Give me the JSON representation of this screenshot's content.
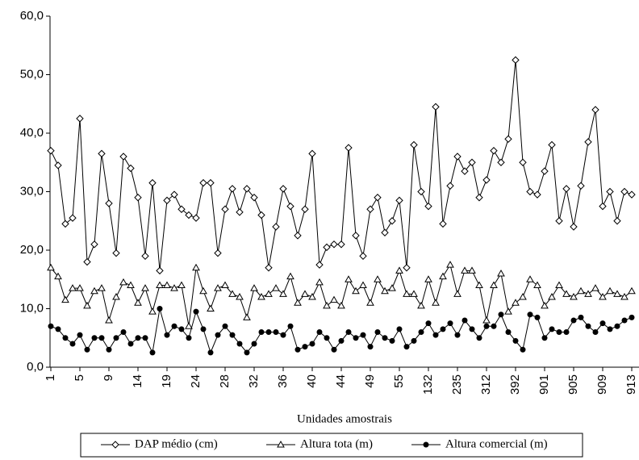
{
  "chart_data": {
    "type": "line",
    "x_label": "Unidades amostrais",
    "categories": [
      "1",
      null,
      null,
      null,
      "5",
      null,
      null,
      null,
      "9",
      null,
      null,
      null,
      "14",
      null,
      null,
      null,
      "19",
      null,
      null,
      null,
      "24",
      null,
      null,
      null,
      "28",
      null,
      null,
      null,
      "32",
      null,
      null,
      null,
      "36",
      null,
      null,
      null,
      "40",
      null,
      null,
      null,
      "44",
      null,
      null,
      null,
      "49",
      null,
      null,
      null,
      "55",
      null,
      null,
      null,
      "132",
      null,
      null,
      null,
      "235",
      null,
      null,
      null,
      "312",
      null,
      null,
      null,
      "392",
      null,
      null,
      null,
      "901",
      null,
      null,
      null,
      "905",
      null,
      null,
      null,
      "909",
      null,
      null,
      null,
      "913"
    ],
    "series": [
      {
        "name": "DAP médio (cm)",
        "color": "#000000",
        "marker": "diamond",
        "values": [
          37,
          34.5,
          24.5,
          25.5,
          42.5,
          18,
          21,
          36.5,
          28,
          19.5,
          36,
          34,
          29,
          19,
          31.5,
          16.5,
          28.5,
          29.5,
          27,
          26,
          25.5,
          31.5,
          31.5,
          19.5,
          27,
          30.5,
          26.5,
          30.5,
          29,
          26,
          17,
          24,
          30.5,
          27.5,
          22.5,
          27,
          36.5,
          17.5,
          20.5,
          21,
          21,
          37.5,
          22.5,
          19,
          27,
          29,
          23,
          25,
          28.5,
          17,
          38,
          30,
          27.5,
          44.5,
          24.5,
          31,
          36,
          33.5,
          35,
          29,
          32,
          37,
          35,
          39,
          52.5,
          35,
          30,
          29.5,
          33.5,
          38,
          25,
          30.5,
          24,
          31,
          38.5,
          44,
          27.5,
          30,
          25,
          30,
          29.5
        ]
      },
      {
        "name": "Altura tota (m)",
        "color": "#000000",
        "marker": "triangle",
        "values": [
          17,
          15.5,
          11.5,
          13.5,
          13.5,
          10.5,
          13,
          13.5,
          8,
          12,
          14.5,
          14,
          11,
          13.5,
          9.5,
          14,
          14,
          13.5,
          14,
          7,
          17,
          13,
          10,
          13.5,
          14,
          12.5,
          12,
          8.5,
          13.5,
          12,
          12.5,
          13.5,
          12.5,
          15.5,
          11,
          12.5,
          12,
          14.5,
          10.5,
          11.5,
          10.5,
          15,
          13,
          14,
          11,
          15,
          13,
          13.5,
          16.5,
          12.5,
          12.5,
          10.5,
          15,
          11,
          15.5,
          17.5,
          12.5,
          16.5,
          16.5,
          14,
          8,
          14,
          16,
          9.5,
          11,
          12,
          15,
          14,
          10.5,
          12,
          14,
          12.5,
          12,
          13,
          12.5,
          13.5,
          12,
          13,
          12.5,
          12,
          13
        ]
      },
      {
        "name": "Altura comercial (m)",
        "color": "#000000",
        "marker": "circle",
        "values": [
          7,
          6.5,
          5,
          4,
          5.5,
          3,
          5,
          5,
          3,
          5,
          6,
          4,
          5,
          5,
          2.5,
          10,
          5.5,
          7,
          6.5,
          5,
          9.5,
          6.5,
          2.5,
          5.5,
          7,
          5.5,
          4,
          2.5,
          4,
          6,
          6,
          6,
          5.5,
          7,
          3,
          3.5,
          4,
          6,
          5,
          3,
          4.5,
          6,
          5,
          5.5,
          3.5,
          6,
          5,
          4.5,
          6.5,
          3.5,
          4.5,
          6,
          7.5,
          5.5,
          6.5,
          7.5,
          5.5,
          8,
          6.5,
          5,
          7,
          7,
          9,
          6,
          4.5,
          3,
          9,
          8.5,
          5,
          6.5,
          6,
          6,
          8,
          8.5,
          7,
          6,
          7.5,
          6.5,
          7,
          8,
          8.5
        ]
      }
    ],
    "ylim": [
      0,
      60
    ],
    "yticks": [
      {
        "value": 0,
        "label": "0,0"
      },
      {
        "value": 10,
        "label": "10,0"
      },
      {
        "value": 20,
        "label": "20,0"
      },
      {
        "value": 30,
        "label": "30,0"
      },
      {
        "value": 40,
        "label": "40,0"
      },
      {
        "value": 50,
        "label": "50,0"
      },
      {
        "value": 60,
        "label": "60,0"
      }
    ],
    "legend": "bottom"
  }
}
